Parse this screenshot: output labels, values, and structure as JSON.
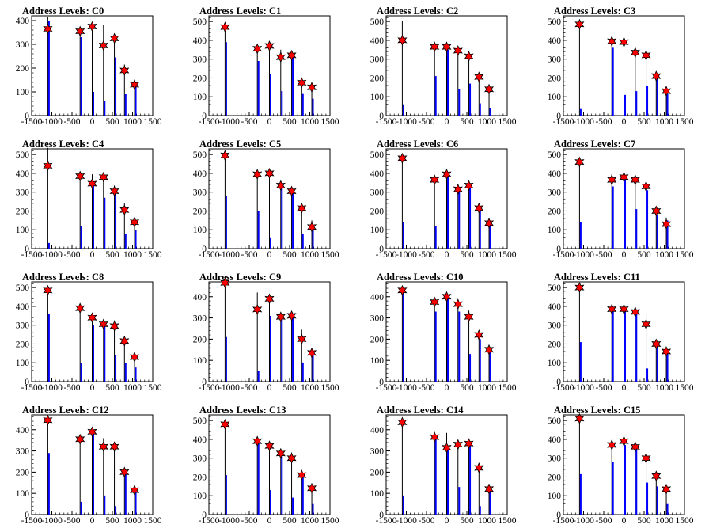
{
  "chart_data": [
    {
      "type": "line",
      "title": "Address Levels: C0",
      "xlim": [
        -1500,
        1500
      ],
      "ylim": [
        0,
        420
      ],
      "yticks": [
        0,
        100,
        200,
        300,
        400
      ],
      "xticks": [
        -1500,
        -1000,
        -500,
        0,
        500,
        1000,
        1500
      ],
      "x": [
        -1100,
        -300,
        0,
        280,
        550,
        800,
        1050
      ],
      "peaks": [
        415,
        345,
        370,
        380,
        330,
        215,
        150
      ],
      "blue": [
        400,
        330,
        100,
        60,
        245,
        90,
        135
      ],
      "markers": [
        365,
        355,
        375,
        295,
        325,
        190,
        130
      ]
    },
    {
      "type": "line",
      "title": "Address Levels: C1",
      "xlim": [
        -1500,
        1500
      ],
      "ylim": [
        0,
        530
      ],
      "yticks": [
        0,
        100,
        200,
        300,
        400,
        500
      ],
      "xticks": [
        -1500,
        -1000,
        -500,
        0,
        500,
        1000,
        1500
      ],
      "x": [
        -1100,
        -300,
        0,
        280,
        550,
        800,
        1050
      ],
      "peaks": [
        475,
        365,
        370,
        350,
        330,
        195,
        175
      ],
      "blue": [
        390,
        290,
        220,
        130,
        325,
        115,
        90
      ],
      "markers": [
        470,
        355,
        370,
        310,
        320,
        175,
        150
      ]
    },
    {
      "type": "line",
      "title": "Address Levels: C2",
      "xlim": [
        -1500,
        1500
      ],
      "ylim": [
        0,
        530
      ],
      "yticks": [
        0,
        100,
        200,
        300,
        400,
        500
      ],
      "xticks": [
        -1500,
        -1000,
        -500,
        0,
        500,
        1000,
        1500
      ],
      "x": [
        -1100,
        -300,
        0,
        280,
        550,
        800,
        1050
      ],
      "peaks": [
        505,
        380,
        370,
        365,
        340,
        225,
        165
      ],
      "blue": [
        60,
        210,
        350,
        140,
        170,
        65,
        40
      ],
      "markers": [
        400,
        365,
        365,
        345,
        315,
        205,
        140
      ]
    },
    {
      "type": "line",
      "title": "Address Levels: C3",
      "xlim": [
        -1500,
        1500
      ],
      "ylim": [
        0,
        530
      ],
      "yticks": [
        0,
        100,
        200,
        300,
        400,
        500
      ],
      "xticks": [
        -1500,
        -1000,
        -500,
        0,
        500,
        1000,
        1500
      ],
      "x": [
        -1100,
        -300,
        0,
        280,
        550,
        800,
        1050
      ],
      "peaks": [
        505,
        410,
        405,
        350,
        340,
        225,
        155
      ],
      "blue": [
        35,
        360,
        110,
        130,
        160,
        200,
        115
      ],
      "markers": [
        485,
        395,
        390,
        335,
        320,
        210,
        130
      ]
    },
    {
      "type": "line",
      "title": "Address Levels: C4",
      "xlim": [
        -1500,
        1500
      ],
      "ylim": [
        0,
        530
      ],
      "yticks": [
        0,
        100,
        200,
        300,
        400,
        500
      ],
      "xticks": [
        -1500,
        -1000,
        -500,
        0,
        500,
        1000,
        1500
      ],
      "x": [
        -1100,
        -300,
        0,
        280,
        550,
        800,
        1050
      ],
      "peaks": [
        535,
        390,
        395,
        385,
        335,
        240,
        155
      ],
      "blue": [
        30,
        120,
        350,
        270,
        300,
        80,
        100
      ],
      "markers": [
        440,
        385,
        345,
        380,
        305,
        205,
        140
      ]
    },
    {
      "type": "line",
      "title": "Address Levels: C5",
      "xlim": [
        -1500,
        1500
      ],
      "ylim": [
        0,
        530
      ],
      "yticks": [
        0,
        100,
        200,
        300,
        400,
        500
      ],
      "xticks": [
        -1500,
        -1000,
        -500,
        0,
        500,
        1000,
        1500
      ],
      "x": [
        -1100,
        -300,
        0,
        280,
        550,
        800,
        1050
      ],
      "peaks": [
        505,
        405,
        410,
        345,
        330,
        235,
        150
      ],
      "blue": [
        280,
        200,
        60,
        330,
        300,
        80,
        100
      ],
      "markers": [
        495,
        395,
        400,
        335,
        305,
        215,
        115
      ]
    },
    {
      "type": "line",
      "title": "Address Levels: C6",
      "xlim": [
        -1500,
        1500
      ],
      "ylim": [
        0,
        530
      ],
      "yticks": [
        0,
        100,
        200,
        300,
        400,
        500
      ],
      "xticks": [
        -1500,
        -1000,
        -500,
        0,
        500,
        1000,
        1500
      ],
      "x": [
        -1100,
        -300,
        0,
        280,
        550,
        800,
        1050
      ],
      "peaks": [
        505,
        380,
        405,
        345,
        345,
        235,
        150
      ],
      "blue": [
        140,
        120,
        390,
        300,
        320,
        200,
        120
      ],
      "markers": [
        480,
        365,
        395,
        315,
        335,
        215,
        135
      ]
    },
    {
      "type": "line",
      "title": "Address Levels: C7",
      "xlim": [
        -1500,
        1500
      ],
      "ylim": [
        0,
        530
      ],
      "yticks": [
        0,
        100,
        200,
        300,
        400,
        500
      ],
      "xticks": [
        -1500,
        -1000,
        -500,
        0,
        500,
        1000,
        1500
      ],
      "x": [
        -1100,
        -300,
        0,
        280,
        550,
        800,
        1050
      ],
      "peaks": [
        475,
        395,
        390,
        385,
        340,
        215,
        165
      ],
      "blue": [
        140,
        330,
        370,
        210,
        310,
        180,
        150
      ],
      "markers": [
        460,
        365,
        380,
        365,
        330,
        200,
        130
      ]
    },
    {
      "type": "line",
      "title": "Address Levels: C8",
      "xlim": [
        -1500,
        1500
      ],
      "ylim": [
        0,
        530
      ],
      "yticks": [
        0,
        100,
        200,
        300,
        400,
        500
      ],
      "xticks": [
        -1500,
        -1000,
        -500,
        0,
        500,
        1000,
        1500
      ],
      "x": [
        -1100,
        -300,
        0,
        280,
        550,
        800,
        1050
      ],
      "peaks": [
        500,
        400,
        360,
        330,
        325,
        230,
        160
      ],
      "blue": [
        360,
        100,
        300,
        300,
        140,
        100,
        75
      ],
      "markers": [
        485,
        390,
        340,
        305,
        295,
        215,
        130
      ]
    },
    {
      "type": "line",
      "title": "Address Levels: C9",
      "xlim": [
        -1500,
        1500
      ],
      "ylim": [
        0,
        470
      ],
      "yticks": [
        0,
        100,
        200,
        300,
        400
      ],
      "xticks": [
        -1500,
        -1000,
        -500,
        0,
        500,
        1000,
        1500
      ],
      "x": [
        -1100,
        -300,
        0,
        280,
        550,
        800,
        1050
      ],
      "peaks": [
        475,
        420,
        395,
        310,
        325,
        245,
        155
      ],
      "blue": [
        210,
        50,
        310,
        300,
        320,
        90,
        130
      ],
      "markers": [
        465,
        340,
        390,
        305,
        310,
        200,
        135
      ]
    },
    {
      "type": "line",
      "title": "Address Levels: C10",
      "xlim": [
        -1500,
        1500
      ],
      "ylim": [
        0,
        470
      ],
      "yticks": [
        0,
        100,
        200,
        300,
        400
      ],
      "xticks": [
        -1500,
        -1000,
        -500,
        0,
        500,
        1000,
        1500
      ],
      "x": [
        -1100,
        -300,
        0,
        280,
        550,
        800,
        1050
      ],
      "peaks": [
        440,
        390,
        410,
        375,
        335,
        235,
        165
      ],
      "blue": [
        420,
        330,
        390,
        330,
        130,
        200,
        150
      ],
      "markers": [
        430,
        375,
        400,
        365,
        305,
        220,
        150
      ]
    },
    {
      "type": "line",
      "title": "Address Levels: C11",
      "xlim": [
        -1500,
        1500
      ],
      "ylim": [
        0,
        530
      ],
      "yticks": [
        0,
        100,
        200,
        300,
        400,
        500
      ],
      "xticks": [
        -1500,
        -1000,
        -500,
        0,
        500,
        1000,
        1500
      ],
      "x": [
        -1100,
        -300,
        0,
        280,
        550,
        800,
        1050
      ],
      "peaks": [
        520,
        400,
        395,
        385,
        360,
        220,
        175
      ],
      "blue": [
        210,
        380,
        380,
        360,
        70,
        200,
        150
      ],
      "markers": [
        500,
        385,
        385,
        370,
        305,
        200,
        160
      ]
    },
    {
      "type": "line",
      "title": "Address Levels: C12",
      "xlim": [
        -1500,
        1500
      ],
      "ylim": [
        0,
        470
      ],
      "yticks": [
        0,
        100,
        200,
        300,
        400
      ],
      "xticks": [
        -1500,
        -1000,
        -500,
        0,
        500,
        1000,
        1500
      ],
      "x": [
        -1100,
        -300,
        0,
        280,
        550,
        800,
        1050
      ],
      "peaks": [
        460,
        370,
        405,
        360,
        340,
        215,
        130
      ],
      "blue": [
        290,
        60,
        380,
        90,
        40,
        200,
        110
      ],
      "markers": [
        445,
        355,
        390,
        320,
        320,
        200,
        115
      ]
    },
    {
      "type": "line",
      "title": "Address Levels: C13",
      "xlim": [
        -1500,
        1500
      ],
      "ylim": [
        0,
        530
      ],
      "yticks": [
        0,
        100,
        200,
        300,
        400,
        500
      ],
      "xticks": [
        -1500,
        -1000,
        -500,
        0,
        500,
        1000,
        1500
      ],
      "x": [
        -1100,
        -300,
        0,
        280,
        550,
        800,
        1050
      ],
      "peaks": [
        500,
        400,
        380,
        345,
        330,
        220,
        160
      ],
      "blue": [
        210,
        380,
        130,
        330,
        90,
        200,
        60
      ],
      "markers": [
        480,
        390,
        365,
        325,
        300,
        210,
        140
      ]
    },
    {
      "type": "line",
      "title": "Address Levels: C14",
      "xlim": [
        -1500,
        1500
      ],
      "ylim": [
        0,
        470
      ],
      "yticks": [
        0,
        100,
        200,
        300,
        400
      ],
      "xticks": [
        -1500,
        -1000,
        -500,
        0,
        500,
        1000,
        1500
      ],
      "x": [
        -1100,
        -300,
        0,
        280,
        550,
        800,
        1050
      ],
      "peaks": [
        445,
        380,
        385,
        340,
        340,
        230,
        145
      ],
      "blue": [
        90,
        370,
        310,
        130,
        330,
        40,
        120
      ],
      "markers": [
        435,
        365,
        315,
        330,
        335,
        220,
        120
      ]
    },
    {
      "type": "line",
      "title": "Address Levels: C15",
      "xlim": [
        -1500,
        1500
      ],
      "ylim": [
        0,
        530
      ],
      "yticks": [
        0,
        100,
        200,
        300,
        400,
        500
      ],
      "xticks": [
        -1500,
        -1000,
        -500,
        0,
        500,
        1000,
        1500
      ],
      "x": [
        -1100,
        -300,
        0,
        280,
        550,
        800,
        1050
      ],
      "peaks": [
        525,
        385,
        400,
        375,
        320,
        220,
        160
      ],
      "blue": [
        215,
        280,
        370,
        350,
        170,
        150,
        60
      ],
      "markers": [
        510,
        370,
        390,
        360,
        300,
        205,
        135
      ]
    }
  ],
  "colors": {
    "blue_series": "#0000ff",
    "black_series": "#000000",
    "marker_fill": "#ff0000",
    "marker_stroke": "#000000"
  }
}
